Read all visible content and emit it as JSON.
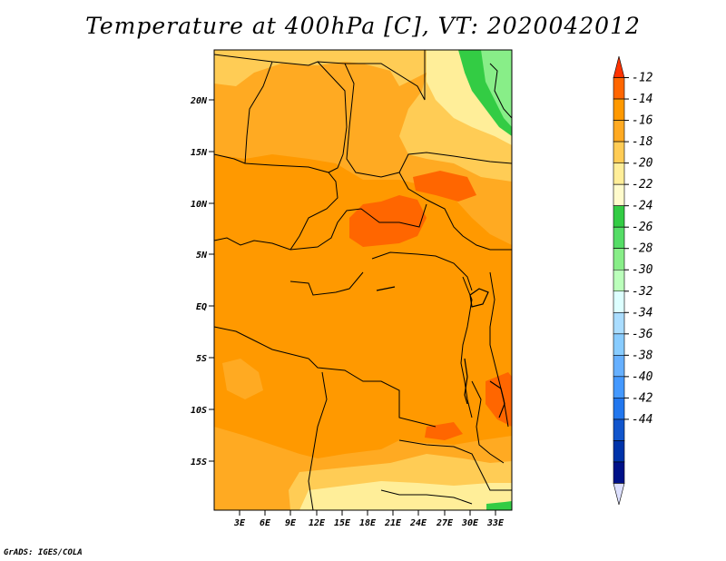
{
  "title": "Temperature at 400hPa [C], VT: 2020042012",
  "credit": "GrADS: IGES/COLA",
  "lat_labels": [
    "20N",
    "15N",
    "10N",
    "5N",
    "EQ",
    "5S",
    "10S",
    "15S"
  ],
  "lon_labels": [
    "3E",
    "6E",
    "9E",
    "12E",
    "15E",
    "18E",
    "21E",
    "24E",
    "27E",
    "30E",
    "33E"
  ],
  "colorbar": {
    "labels": [
      "-12",
      "-14",
      "-16",
      "-18",
      "-20",
      "-22",
      "-24",
      "-26",
      "-28",
      "-30",
      "-32",
      "-34",
      "-36",
      "-38",
      "-40",
      "-42",
      "-44"
    ],
    "colors": [
      "#ff3300",
      "#ff6600",
      "#ff9900",
      "#ffaa22",
      "#ffcc55",
      "#ffee99",
      "#fffbcc",
      "#33cc44",
      "#55dd66",
      "#88ee88",
      "#bbffbb",
      "#ddffff",
      "#aaddff",
      "#88ccff",
      "#66b0ff",
      "#4499ff",
      "#2277ee",
      "#1155cc",
      "#0033aa",
      "#001188",
      "#dde0ff"
    ]
  },
  "map_colors": {
    "base": "#ff9900",
    "light": "#ffaa22",
    "pale": "#ffcc55",
    "cream": "#ffee99",
    "warm": "#ff6600",
    "green": "#33cc44",
    "lightgreen": "#88ee88",
    "border": "#000000"
  }
}
